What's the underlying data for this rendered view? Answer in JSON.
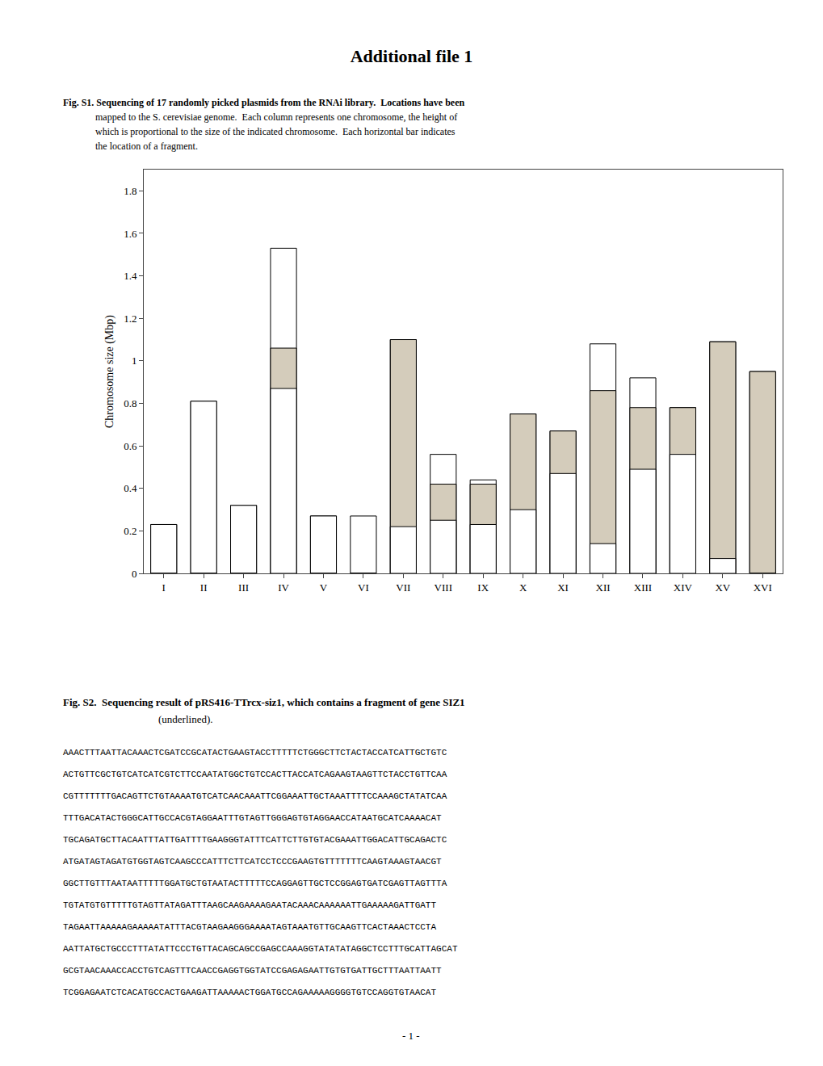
{
  "chart_data": {
    "type": "bar",
    "title": "Additional file 1",
    "categories": [
      "I",
      "II",
      "III",
      "IV",
      "V",
      "VI",
      "VII",
      "VIII",
      "IX",
      "X",
      "XI",
      "XII",
      "XIII",
      "XIV",
      "XV",
      "XVI"
    ],
    "series": [
      {
        "values": [
          0.23,
          0.81,
          0.32,
          1.53,
          0.27,
          0.27,
          1.1,
          0.56,
          0.44,
          0.75,
          0.67,
          1.08,
          0.92,
          0.78,
          1.09,
          0.95
        ],
        "color": "#FFFFFF"
      },
      {
        "values": [
          0.23,
          0.81,
          0.32,
          1.06,
          0.27,
          0.0,
          1.1,
          0.42,
          0.42,
          0.75,
          0.67,
          0.86,
          0.78,
          0.78,
          1.09,
          0.95
        ],
        "base": [
          0.0,
          0.0,
          0.0,
          0.87,
          0.0,
          0.0,
          0.22,
          0.25,
          0.23,
          0.3,
          0.47,
          0.14,
          0.49,
          0.56,
          0.07,
          0.0
        ],
        "colors": [
          "#FFFFFF",
          "#FFFFFF",
          "#FFFFFF",
          "#D4CCBB",
          "#FFFFFF",
          "#FFFFFF",
          "#D4CCBB",
          "#D4CCBB",
          "#D4CCBB",
          "#D4CCBB",
          "#D4CCBB",
          "#D4CCBB",
          "#D4CCBB",
          "#D4CCBB",
          "#D4CCBB",
          "#D4CCBB"
        ]
      }
    ],
    "ylabel": "Chromosome size (Mbp)",
    "ylim": [
      0,
      1.9
    ],
    "yticks": [
      0,
      0.2,
      0.4,
      0.6,
      0.8,
      1,
      1.2,
      1.4,
      1.6,
      1.8
    ],
    "grid": false,
    "annotations": [
      [
        "Fig. S1. Sequencing of 17 randomly picked plasmids from the RNAi library.  Locations have been",
        "mapped to the S. cerevisiae genome.  Each column represents one chromosome, the height of",
        "which is proportional to the size of the indicated chromosome.  Each horizontal bar indicates",
        "the location of a fragment."
      ],
      [
        "Fig. S2.  Sequencing result of pRS416-TTrcx-siz1, which contains a fragment of gene SIZ1",
        "(underlined)."
      ],
      [
        "AAACTTTAATTACAAACTCGATCCGCATACTGAAGTACCTTTTTCTGGGCTTCTACTACCATCATTGCTGTC",
        "ACTGTTCGCTGTCATCATCGTCTTCCAATATGGCTGTCCACTTACCATCAGAAGTAAGTTCTACCTGTTCAA",
        "CGTTTTTTTGACAGTTCTGTAAAATGTCATCAACAAATTCGGAAATTGCTAAATTTTCCAAAGCTATATCAA",
        "TTTGACATACTGGGCATTGCCACGTAGGAATTTGTAGTTGGGAGTGTAGGAACCATAATGCATCAAAACAT",
        "TGCAGATGCTTACAATTTATTGATTTTGAAGGGTATTTCATTCTTGTGTACGAAATTGGACATTGCAGACTC",
        "ATGATAGTAGATGTGGTAGTCAAGCCCATTTCTTCATCCTCCCGAAGTGTTTTTTTCAAGTAAAGTAACGT",
        "GGCTTGTTTAATAATTTTTGGATGCTGTAATACTTTTTCCAGGAGTTGCTCCGGAGTGATCGAGTTAGTTTA",
        "TGTATGTGTTTTTGTAGTTATAGATTTAAGCAAGAAAAGAATACAAACAAAAAATTGAAAAAGATTGATT",
        "TAGAATTAAAAAGAAAAATATTTACGTAAGAAGGGAAAATAGTAAATGTTGCAAGTTCACTAAACTCCTA",
        "AATTATGCTGCCCTTTATATTCCCTGTTACAGCAGCCGAGCCAAAGGTATATATAGGCTCCTTTGCATTAGCAT",
        "GCGTAACAAACCACCTGTCAGTTTCAACCGAGGTGGTATCCGAGAGAATTGTGTGATTGCTTTAATTAATT",
        "TCGGAGAATCTCACATGCCACTGAAGATTAAAAACTGGATGCCAGAAAAAGGGGTGTCCAGGTGTAACAT"
      ],
      [
        "- 1 -"
      ]
    ]
  }
}
